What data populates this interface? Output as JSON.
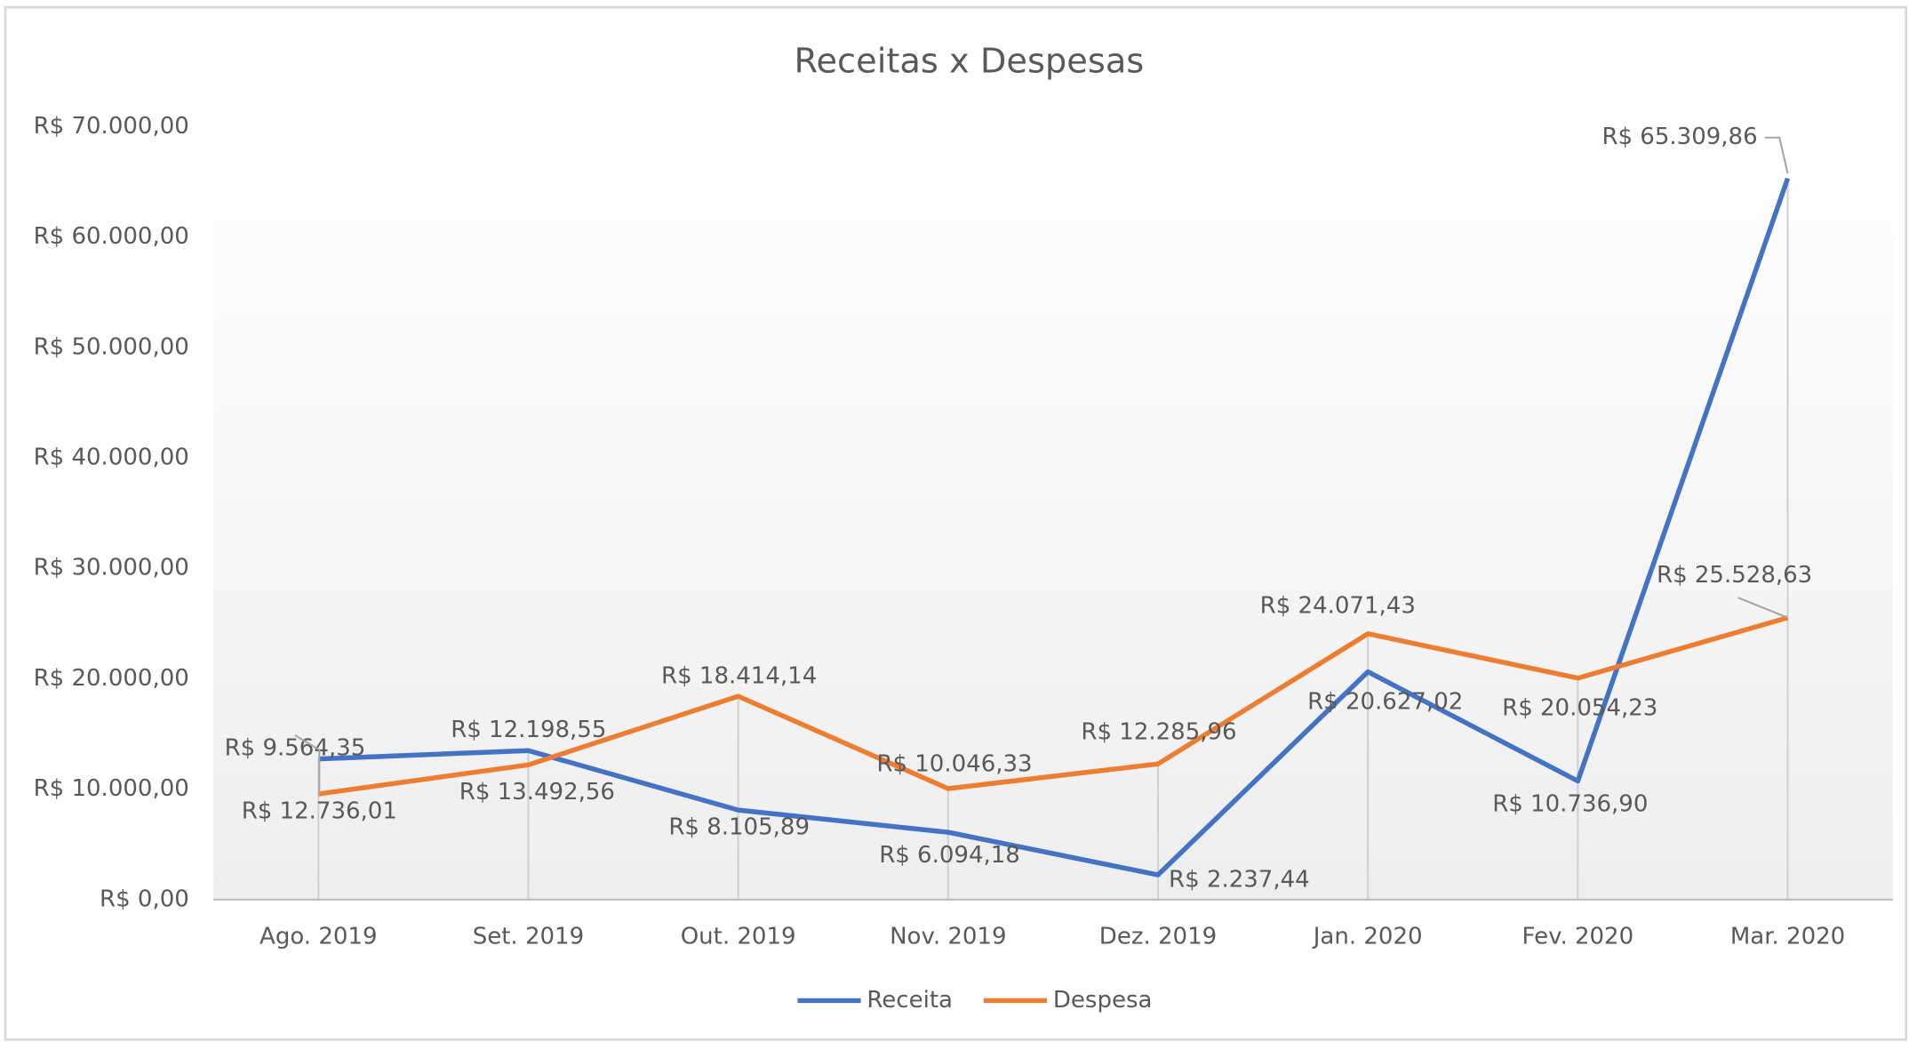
{
  "chart_data": {
    "type": "line",
    "title": "Receitas  x Despesas",
    "categories": [
      "Ago. 2019",
      "Set. 2019",
      "Out. 2019",
      "Nov. 2019",
      "Dez. 2019",
      "Jan. 2020",
      "Fev. 2020",
      "Mar. 2020"
    ],
    "series": [
      {
        "name": "Receita",
        "color": "#4472c4",
        "values": [
          12736.01,
          13492.56,
          8105.89,
          6094.18,
          2237.44,
          20627.02,
          10736.9,
          65309.86
        ],
        "value_labels": [
          "R$ 12.736,01",
          "R$ 13.492,56",
          "R$ 8.105,89",
          "R$ 6.094,18",
          "R$ 2.237,44",
          "R$ 20.627,02",
          "R$ 10.736,90",
          "R$ 65.309,86"
        ]
      },
      {
        "name": "Despesa",
        "color": "#ed7d31",
        "values": [
          9564.35,
          12198.55,
          18414.14,
          10046.33,
          12285.96,
          24071.43,
          20054.23,
          25528.63
        ],
        "value_labels": [
          "R$ 9.564,35",
          "R$ 12.198,55",
          "R$ 18.414,14",
          "R$ 10.046,33",
          "R$ 12.285,96",
          "R$ 24.071,43",
          "R$ 20.054,23",
          "R$ 25.528,63"
        ]
      }
    ],
    "ylim": [
      0,
      70000
    ],
    "yticks": [
      {
        "value": 0,
        "label": "R$ 0,00"
      },
      {
        "value": 10000,
        "label": "R$ 10.000,00"
      },
      {
        "value": 20000,
        "label": "R$ 20.000,00"
      },
      {
        "value": 30000,
        "label": "R$ 30.000,00"
      },
      {
        "value": 40000,
        "label": "R$ 40.000,00"
      },
      {
        "value": 50000,
        "label": "R$ 50.000,00"
      },
      {
        "value": 60000,
        "label": "R$ 60.000,00"
      },
      {
        "value": 70000,
        "label": "R$ 70.000,00"
      }
    ],
    "grid": false,
    "legend": "bottom"
  }
}
